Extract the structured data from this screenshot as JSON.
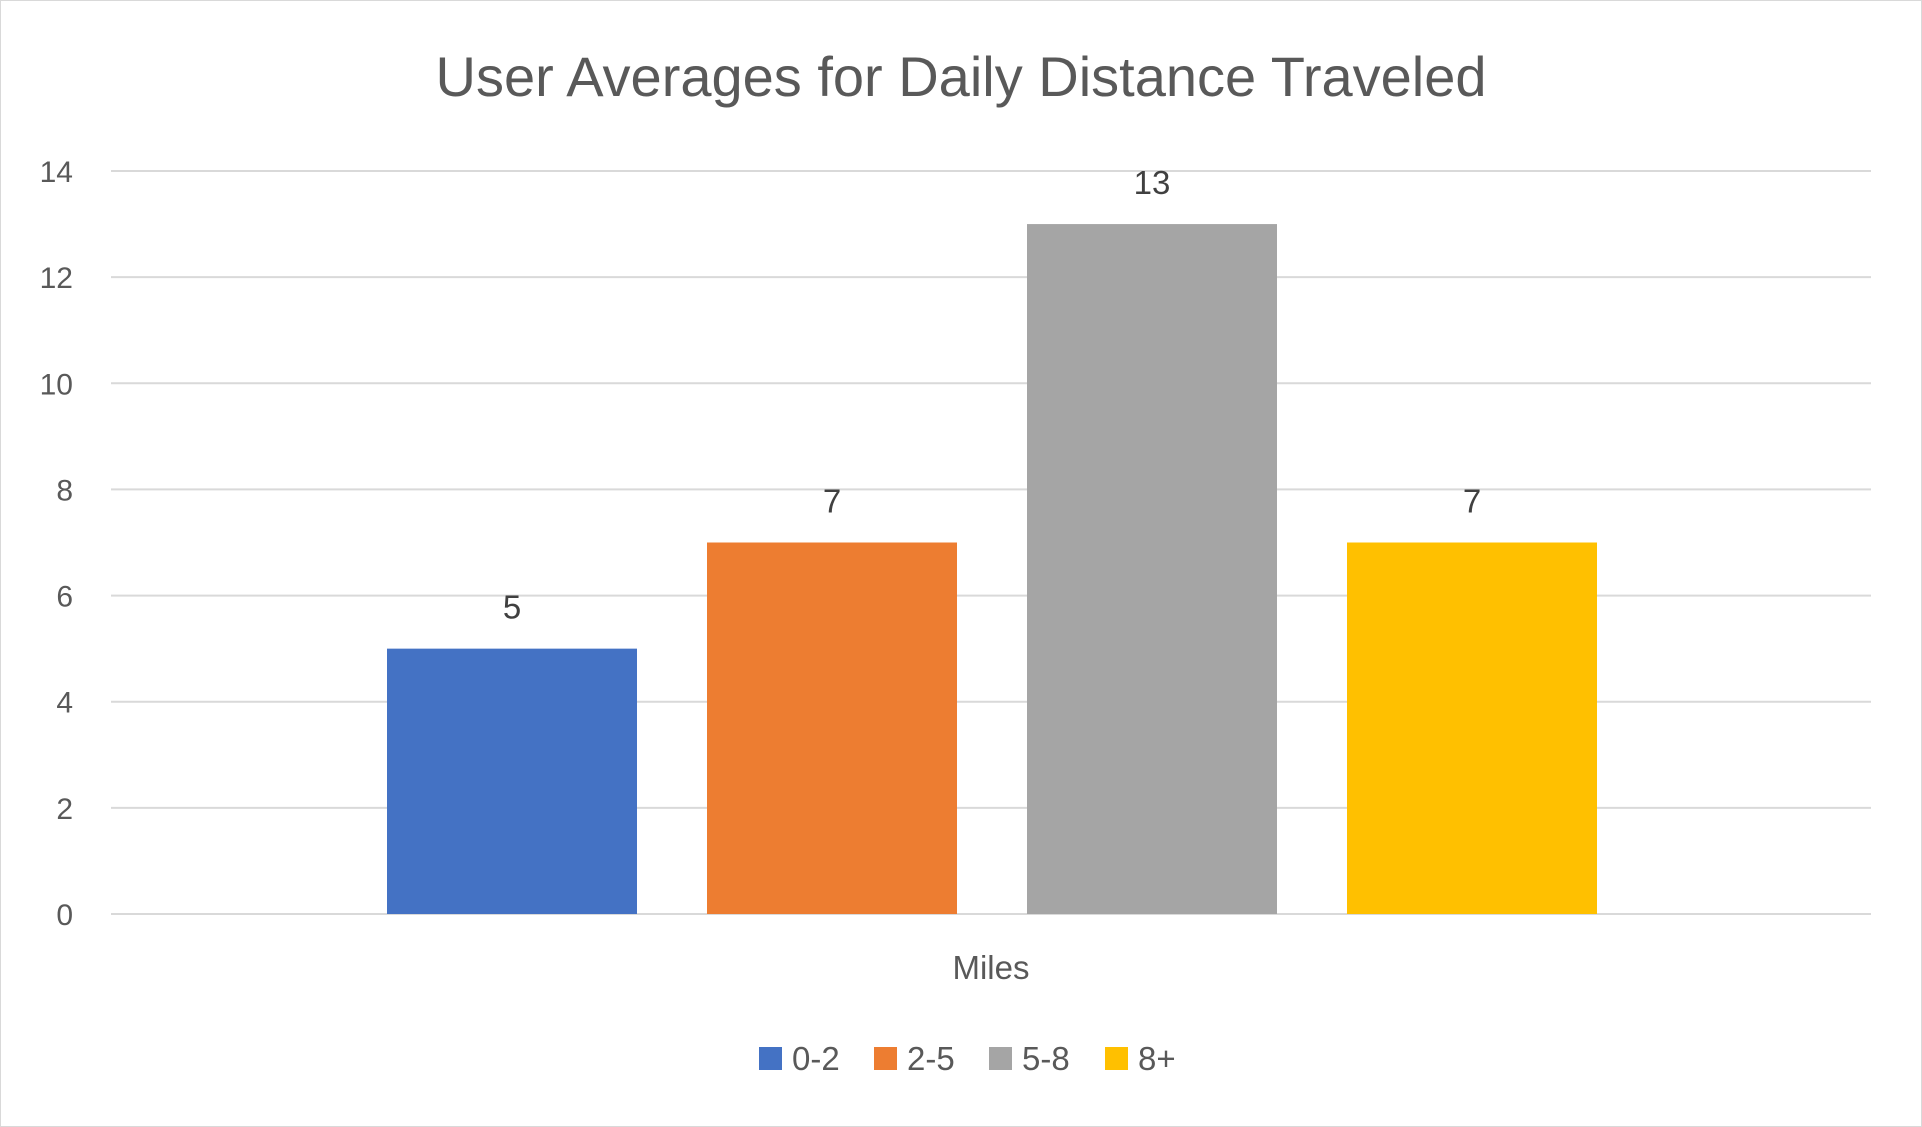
{
  "chart_data": {
    "type": "bar",
    "title": "User Averages for Daily Distance Traveled",
    "xlabel": "",
    "ylabel": "",
    "categories": [
      "Miles"
    ],
    "series": [
      {
        "name": "0-2",
        "values": [
          5
        ],
        "color": "#4472C4"
      },
      {
        "name": "2-5",
        "values": [
          7
        ],
        "color": "#ED7D31"
      },
      {
        "name": "5-8",
        "values": [
          13
        ],
        "color": "#A5A5A5"
      },
      {
        "name": "8+",
        "values": [
          7
        ],
        "color": "#FFC000"
      }
    ],
    "ylim": [
      0,
      14
    ],
    "y_ticks": [
      0,
      2,
      4,
      6,
      8,
      10,
      12,
      14
    ],
    "grid": true,
    "gridline_color": "#d9d9d9",
    "data_labels": true,
    "legend_position": "bottom"
  }
}
